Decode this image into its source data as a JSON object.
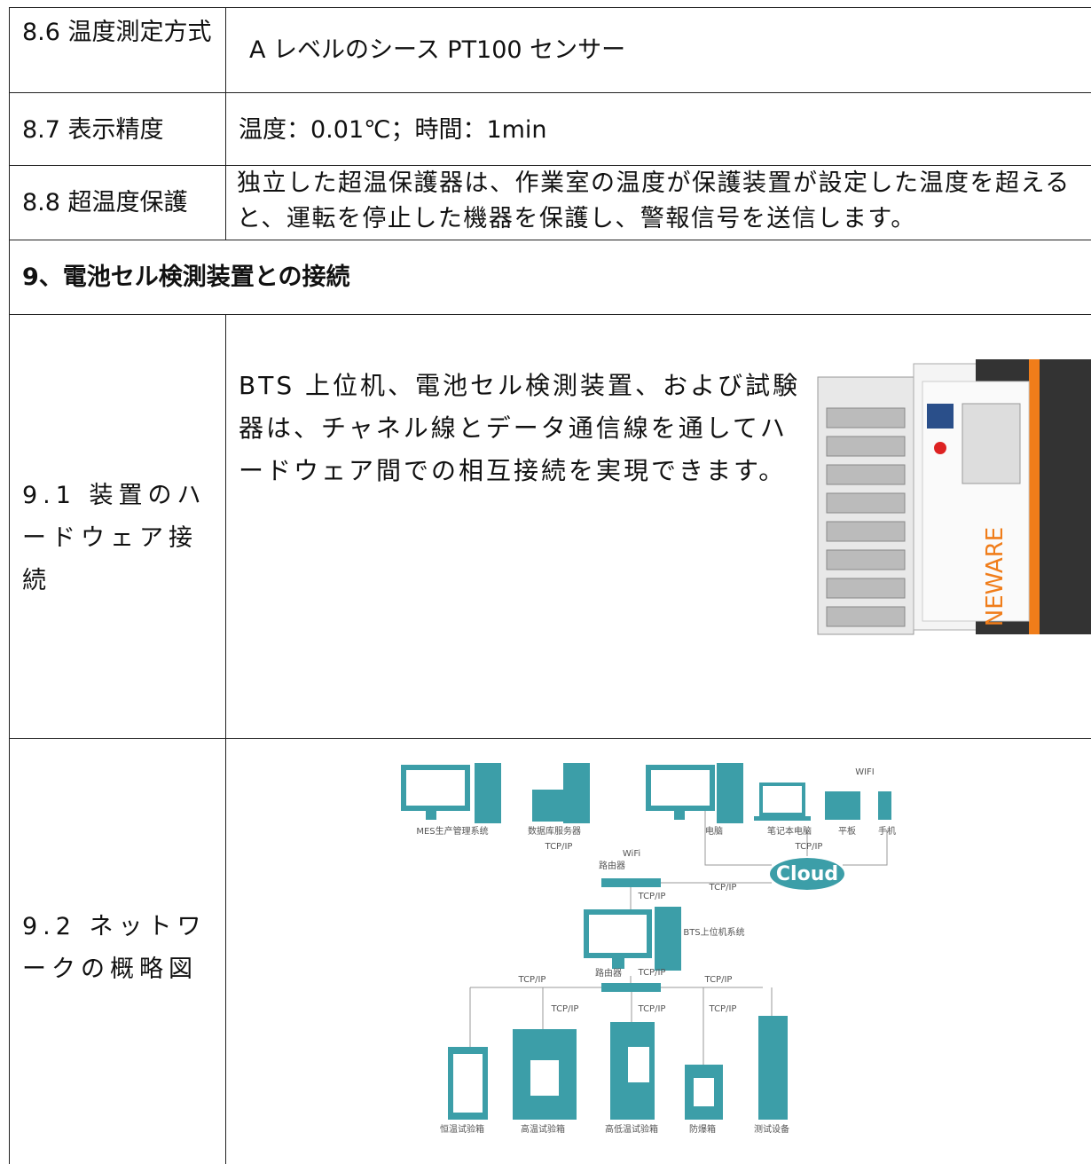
{
  "table": {
    "rows": [
      [
        "8.6 温度測定方式",
        "A レベルのシース PT100 センサー"
      ],
      [
        "8.7 表示精度",
        "温度：0.01℃；時間：1min"
      ],
      [
        "8.8 超温度保護",
        "独立した超温保護器は、作業室の温度が保護装置が設定した温度を超えると、運転を停止した機器を保護し、警報信号を送信します。"
      ]
    ],
    "section": "9、電池セル検測装置との接続",
    "rows2": [
      [
        "9.1 装置のハードウェア接続",
        "BTS 上位机、電池セル検測装置、および試験器は、チャネル線とデータ通信線を通してハードウェア間での相互接続を実現できます。"
      ],
      [
        "9.2 ネットワークの概略図"
      ]
    ]
  },
  "photo": {
    "brand": "NEWARE"
  },
  "diagram": {
    "labels": [
      "MES生产管理系统",
      "数据库服务器",
      "TCP/IP",
      "电脑",
      "笔记本电脑",
      "平板",
      "手机",
      "WIFI",
      "TCP/IP",
      "Cloud",
      "WiFi",
      "路由器",
      "TCP/IP",
      "TCP/IP",
      "BTS上位机系统",
      "路由器",
      "TCP/IP",
      "TCP/IP",
      "TCP/IP",
      "TCP/IP",
      "TCP/IP",
      "TCP/IP",
      "恒温试验箱",
      "高温试验箱",
      "高低温试验箱",
      "防爆箱",
      "测试设备"
    ]
  }
}
